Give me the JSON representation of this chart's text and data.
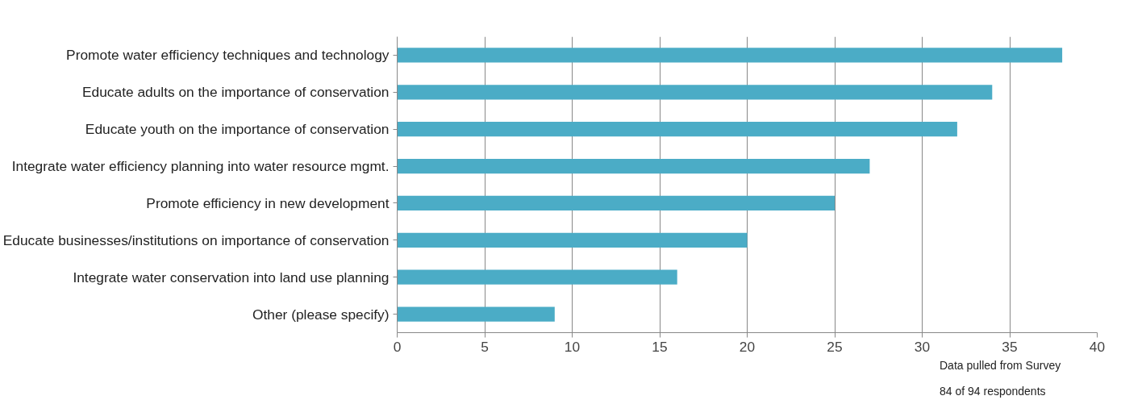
{
  "chart_data": {
    "type": "bar",
    "orientation": "horizontal",
    "categories": [
      "Promote water efficiency techniques and technology",
      "Educate adults on the importance of conservation",
      "Educate youth on the importance of conservation",
      "Integrate water efficiency planning into water resource mgmt.",
      "Promote efficiency in new development",
      "Educate businesses/institutions on importance of conservation",
      "Integrate water conservation into land use planning",
      "Other (please specify)"
    ],
    "values": [
      38,
      34,
      32,
      27,
      25,
      20,
      16,
      9
    ],
    "color": "#4bacc6",
    "xlim": [
      0,
      40
    ],
    "xticks": [
      0,
      5,
      10,
      15,
      20,
      25,
      30,
      35,
      40
    ],
    "grid": "x",
    "annotations": [
      "Data pulled from Survey",
      "84 of 94 respondents"
    ]
  }
}
